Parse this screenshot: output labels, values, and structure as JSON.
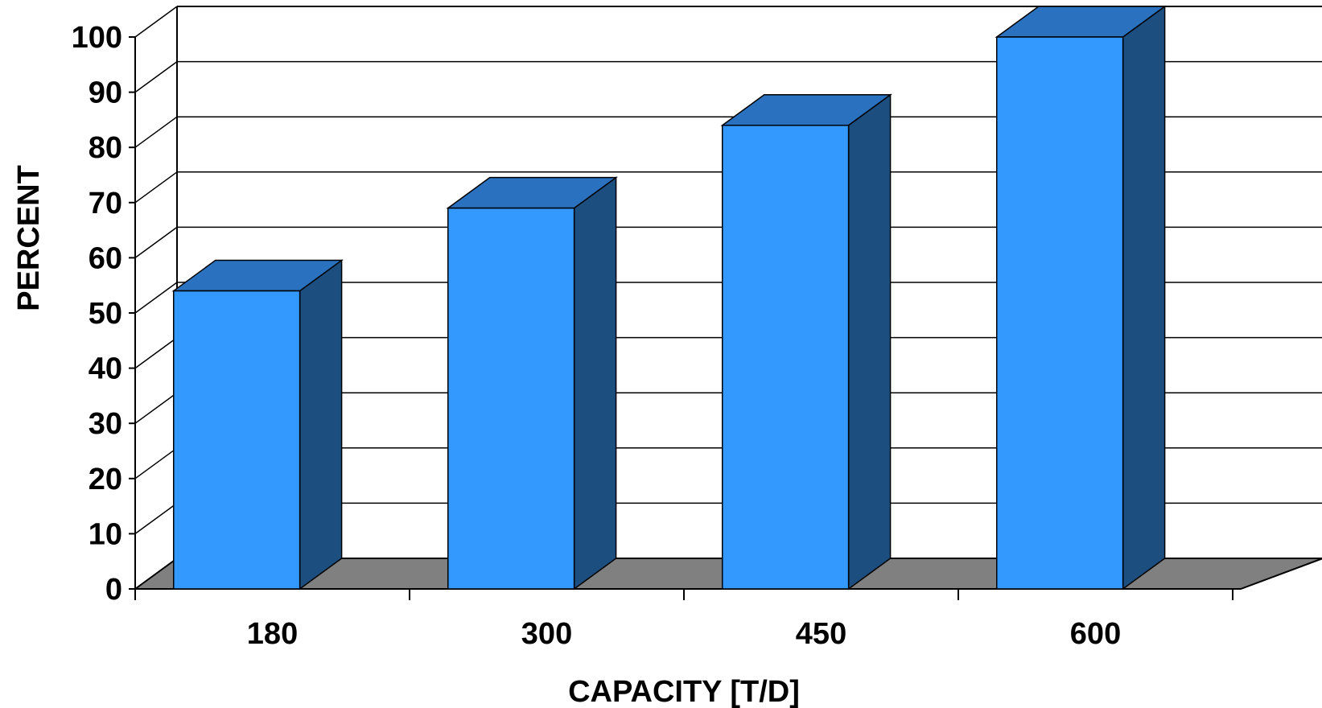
{
  "chart_data": {
    "type": "bar",
    "style": "3d-column",
    "categories": [
      "180",
      "300",
      "450",
      "600"
    ],
    "values": [
      54,
      69,
      84,
      100
    ],
    "title": "",
    "xlabel": "CAPACITY [T/D]",
    "ylabel": "PERCENT",
    "ylim": [
      0,
      100
    ],
    "yticks": [
      "0",
      "10",
      "20",
      "30",
      "40",
      "50",
      "60",
      "70",
      "80",
      "90",
      "100"
    ],
    "grid": true,
    "legend": "none",
    "colors": {
      "bar_front": "#3399ff",
      "bar_top": "#2a72c0",
      "bar_side": "#1c4f80",
      "floor": "#808080",
      "grid": "#000000"
    }
  }
}
